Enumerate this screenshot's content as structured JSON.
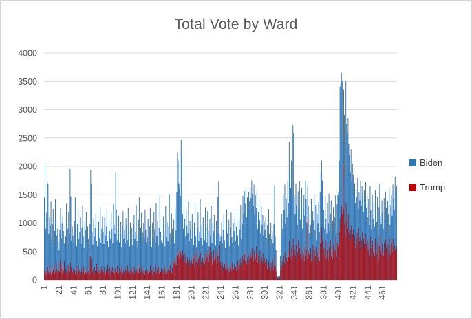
{
  "chart_data": {
    "type": "bar",
    "title": "Total Vote by Ward",
    "xlabel": "",
    "ylabel": "",
    "ylim": [
      0,
      4000
    ],
    "y_ticks": [
      0,
      500,
      1000,
      1500,
      2000,
      2500,
      3000,
      3500,
      4000
    ],
    "x_tick_labels": [
      "1",
      "21",
      "41",
      "61",
      "81",
      "101",
      "121",
      "141",
      "161",
      "181",
      "201",
      "221",
      "241",
      "261",
      "281",
      "301",
      "321",
      "341",
      "361",
      "381",
      "401",
      "421",
      "441",
      "461"
    ],
    "x_tick_step": 20,
    "n_categories": 480,
    "grid": true,
    "legend_position": "right",
    "axis_color": "#BFBFBF",
    "gridline_color": "#D9D9D9",
    "tick_label_color": "#595959",
    "series": [
      {
        "name": "Biden",
        "color": "#2E75B6",
        "values": [
          1450,
          2060,
          900,
          1180,
          1720,
          1690,
          800,
          1100,
          950,
          1380,
          700,
          980,
          1250,
          620,
          860,
          1420,
          1050,
          780,
          900,
          680,
          520,
          880,
          1260,
          740,
          990,
          1130,
          860,
          640,
          1010,
          760,
          1340,
          580,
          900,
          1200,
          820,
          1950,
          1470,
          690,
          940,
          780,
          660,
          1040,
          1450,
          870,
          590,
          980,
          1240,
          720,
          850,
          1100,
          630,
          920,
          1310,
          770,
          560,
          1010,
          880,
          1190,
          740,
          940,
          720,
          560,
          980,
          1930,
          1700,
          840,
          620,
          1080,
          760,
          910,
          1150,
          680,
          590,
          870,
          1020,
          740,
          1280,
          650,
          900,
          1120,
          850,
          630,
          1100,
          780,
          940,
          1270,
          690,
          580,
          1040,
          860,
          720,
          1180,
          900,
          640,
          1330,
          970,
          810,
          1900,
          1240,
          700,
          880,
          1130,
          660,
          790,
          1020,
          580,
          940,
          1210,
          730,
          870,
          640,
          1090,
          960,
          700,
          1270,
          820,
          590,
          1010,
          750,
          920,
          610,
          980,
          1140,
          720,
          850,
          1320,
          690,
          570,
          1060,
          1450,
          780,
          910,
          1180,
          640,
          830,
          1000,
          740,
          1240,
          880,
          660,
          750,
          1080,
          620,
          940,
          1260,
          830,
          580,
          1010,
          720,
          1190,
          890,
          660,
          1350,
          770,
          1040,
          600,
          920,
          1480,
          850,
          700,
          980,
          640,
          1120,
          860,
          590,
          1300,
          750,
          1020,
          680,
          940,
          1510,
          820,
          610,
          1170,
          900,
          730,
          1060,
          640,
          1280,
          870,
          1550,
          2250,
          2100,
          1700,
          1620,
          1480,
          2460,
          2230,
          1150,
          900,
          1420,
          1080,
          760,
          1230,
          950,
          820,
          1380,
          690,
          1040,
          880,
          720,
          1150,
          880,
          620,
          1010,
          1340,
          760,
          580,
          930,
          1190,
          690,
          850,
          1420,
          740,
          960,
          610,
          1100,
          830,
          700,
          1280,
          940,
          660,
          1210,
          870,
          590,
          1080,
          780,
          1310,
          640,
          990,
          860,
          1140,
          720,
          600,
          1030,
          890,
          1460,
          1730,
          810,
          680,
          760,
          1020,
          640,
          880,
          1150,
          700,
          560,
          970,
          1240,
          820,
          690,
          1060,
          590,
          910,
          1180,
          750,
          640,
          1000,
          860,
          1120,
          680,
          940,
          1210,
          780,
          600,
          1050,
          890,
          1320,
          720,
          980,
          1480,
          1160,
          1560,
          1340,
          1620,
          1100,
          1450,
          1280,
          1550,
          1380,
          1620,
          1440,
          1750,
          1520,
          1300,
          1680,
          1150,
          1490,
          1260,
          1570,
          900,
          1200,
          1420,
          1050,
          820,
          1310,
          960,
          1140,
          780,
          1020,
          880,
          1120,
          740,
          960,
          690,
          1250,
          810,
          590,
          1010,
          720,
          850,
          640,
          980,
          1660,
          760,
          520,
          80,
          50,
          60,
          40,
          60,
          420,
          780,
          1150,
          900,
          1500,
          1230,
          1680,
          980,
          1420,
          1100,
          1750,
          1350,
          2430,
          1900,
          1620,
          2100,
          1450,
          2730,
          2590,
          1480,
          1150,
          1700,
          1320,
          960,
          1560,
          1240,
          1730,
          1060,
          1380,
          1620,
          900,
          1270,
          1500,
          1130,
          1740,
          1420,
          1010,
          1650,
          1300,
          820,
          1140,
          960,
          1430,
          760,
          1210,
          1050,
          1490,
          880,
          1320,
          700,
          1160,
          990,
          1370,
          840,
          1550,
          1900,
          2100,
          1750,
          1480,
          1230,
          900,
          1470,
          1080,
          820,
          1350,
          990,
          1520,
          870,
          1160,
          1400,
          760,
          1040,
          1280,
          940,
          1100,
          1490,
          800,
          1330,
          1500,
          1550,
          2100,
          3400,
          3460,
          3650,
          3500,
          2450,
          3350,
          2900,
          1800,
          3500,
          2750,
          2600,
          2850,
          2400,
          2200,
          1900,
          2300,
          1750,
          2050,
          1850,
          1500,
          1700,
          1350,
          1600,
          1450,
          1800,
          1250,
          1550,
          1400,
          1750,
          1300,
          1650,
          1480,
          1200,
          1580,
          1380,
          1720,
          1260,
          1520,
          1100,
          1420,
          960,
          1650,
          1230,
          880,
          1500,
          1080,
          1350,
          940,
          1580,
          1180,
          1020,
          1460,
          850,
          1280,
          1700,
          1120,
          980,
          1400,
          1180,
          900,
          1440,
          1060,
          1550,
          1270,
          820,
          1390,
          1150,
          1620,
          970,
          1320,
          1500,
          1130,
          1680,
          1420,
          1240,
          1820,
          1560,
          1650
        ]
      },
      {
        "name": "Trump",
        "color": "#C00000",
        "values": [
          180,
          120,
          90,
          160,
          220,
          150,
          110,
          260,
          140,
          90,
          200,
          130,
          170,
          240,
          110,
          150,
          300,
          190,
          120,
          160,
          140,
          350,
          280,
          190,
          110,
          230,
          160,
          330,
          120,
          210,
          150,
          90,
          260,
          180,
          140,
          310,
          220,
          170,
          130,
          200,
          120,
          180,
          90,
          220,
          150,
          110,
          260,
          170,
          130,
          90,
          200,
          140,
          160,
          240,
          100,
          180,
          130,
          110,
          210,
          150,
          160,
          110,
          420,
          380,
          250,
          140,
          190,
          90,
          230,
          160,
          120,
          280,
          150,
          200,
          110,
          170,
          130,
          240,
          180,
          140,
          130,
          220,
          160,
          100,
          190,
          140,
          260,
          120,
          170,
          210,
          90,
          150,
          230,
          130,
          180,
          110,
          200,
          160,
          140,
          250,
          150,
          100,
          210,
          170,
          130,
          240,
          110,
          180,
          140,
          90,
          200,
          160,
          120,
          260,
          150,
          190,
          110,
          170,
          220,
          130,
          180,
          120,
          230,
          160,
          100,
          190,
          140,
          270,
          110,
          200,
          150,
          130,
          240,
          170,
          120,
          210,
          90,
          160,
          190,
          140,
          160,
          110,
          200,
          140,
          250,
          120,
          180,
          90,
          220,
          150,
          130,
          270,
          100,
          190,
          160,
          230,
          110,
          170,
          140,
          200,
          130,
          180,
          110,
          240,
          160,
          100,
          210,
          150,
          190,
          120,
          170,
          260,
          140,
          110,
          200,
          330,
          280,
          380,
          310,
          260,
          420,
          510,
          460,
          380,
          550,
          490,
          430,
          360,
          520,
          440,
          300,
          470,
          350,
          280,
          400,
          330,
          250,
          380,
          300,
          220,
          350,
          280,
          430,
          380,
          240,
          460,
          320,
          550,
          290,
          370,
          410,
          260,
          480,
          330,
          220,
          390,
          300,
          450,
          270,
          340,
          470,
          390,
          520,
          310,
          440,
          580,
          360,
          490,
          270,
          410,
          530,
          340,
          460,
          380,
          290,
          510,
          420,
          350,
          600,
          320,
          250,
          180,
          310,
          220,
          150,
          280,
          200,
          340,
          170,
          240,
          190,
          130,
          260,
          210,
          160,
          300,
          230,
          180,
          270,
          200,
          220,
          160,
          290,
          340,
          190,
          250,
          380,
          300,
          230,
          420,
          360,
          280,
          450,
          330,
          500,
          270,
          390,
          310,
          430,
          350,
          480,
          390,
          560,
          420,
          330,
          510,
          440,
          370,
          590,
          460,
          300,
          430,
          350,
          520,
          280,
          400,
          330,
          470,
          290,
          380,
          310,
          240,
          370,
          190,
          280,
          330,
          220,
          160,
          290,
          210,
          350,
          180,
          260,
          400,
          230,
          150,
          30,
          20,
          25,
          15,
          25,
          180,
          260,
          340,
          220,
          410,
          300,
          480,
          260,
          390,
          330,
          520,
          400,
          680,
          450,
          370,
          560,
          420,
          730,
          610,
          520,
          430,
          610,
          350,
          480,
          700,
          390,
          560,
          440,
          620,
          380,
          510,
          460,
          330,
          590,
          420,
          540,
          370,
          1090,
          480,
          440,
          380,
          560,
          320,
          490,
          610,
          350,
          530,
          420,
          580,
          300,
          470,
          390,
          550,
          330,
          640,
          760,
          920,
          680,
          540,
          560,
          430,
          690,
          380,
          520,
          640,
          350,
          580,
          470,
          700,
          410,
          550,
          360,
          620,
          480,
          530,
          750,
          400,
          660,
          580,
          620,
          850,
          1100,
          950,
          1300,
          1150,
          2050,
          1250,
          980,
          760,
          1350,
          1050,
          900,
          1150,
          820,
          700,
          880,
          950,
          720,
          800,
          880,
          650,
          780,
          560,
          720,
          830,
          600,
          910,
          680,
          760,
          520,
          690,
          840,
          580,
          730,
          640,
          560,
          800,
          620,
          700,
          520,
          640,
          430,
          750,
          560,
          380,
          690,
          480,
          610,
          420,
          730,
          540,
          460,
          670,
          350,
          590,
          780,
          510,
          440,
          630,
          540,
          420,
          660,
          480,
          710,
          560,
          380,
          620,
          500,
          740,
          440,
          580,
          650,
          490,
          720,
          560,
          610,
          530,
          470,
          590
        ]
      }
    ]
  }
}
